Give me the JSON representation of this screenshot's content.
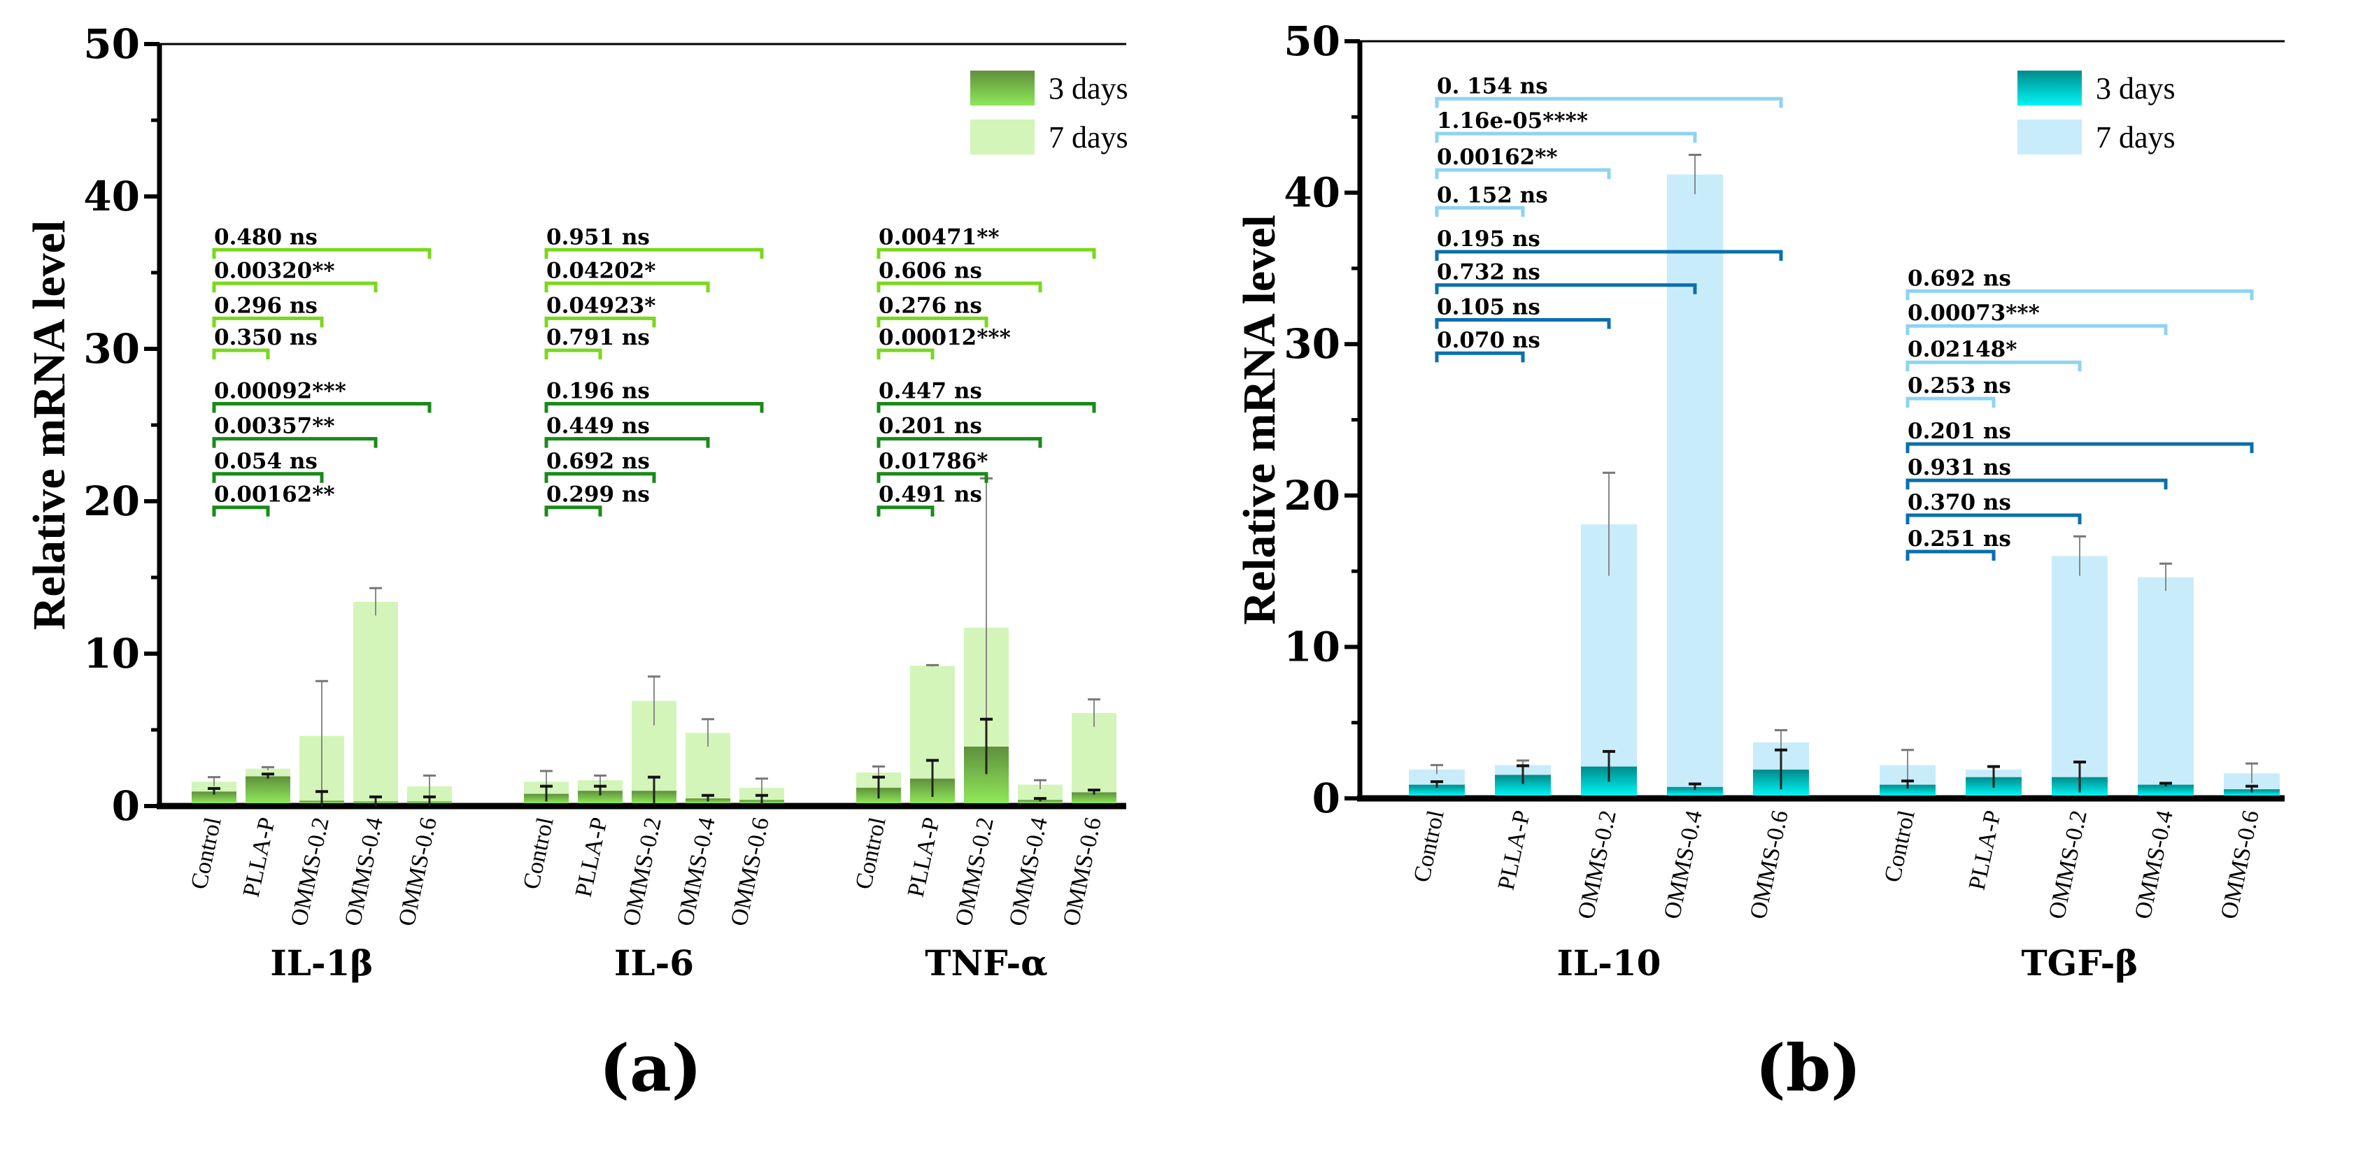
{
  "chart_data": [
    {
      "type": "bar",
      "panel_label": "(a)",
      "ylabel": "Relative mRNA level",
      "ylim": [
        0,
        50
      ],
      "yticks": [
        "0",
        "10",
        "20",
        "30",
        "40",
        "50"
      ],
      "legend": {
        "placement": "top-right",
        "entries": [
          "3 days",
          "7 days"
        ]
      },
      "colors": {
        "d3_top": "#5f8f3c",
        "d3_bottom": "#8fe85a",
        "d7": "#d3f5b9",
        "bracket_d3": "#1a8a1a",
        "bracket_d7": "#7ad81c"
      },
      "categories": [
        "Control",
        "PLLA-P",
        "OMMS-0.2",
        "OMMS-0.4",
        "OMMS-0.6"
      ],
      "groups": [
        {
          "name": "IL-1β",
          "d3": [
            0.95,
            1.95,
            0.35,
            0.3,
            0.3
          ],
          "d3_err": [
            0.2,
            0.15,
            0.6,
            0.3,
            0.3
          ],
          "d7": [
            1.6,
            2.45,
            4.6,
            13.4,
            1.3
          ],
          "d7_err": [
            0.3,
            0.1,
            3.6,
            0.9,
            0.7
          ],
          "annotations": [
            {
              "text": "0.00162**",
              "to": 1,
              "level": 19.6,
              "set": "d3"
            },
            {
              "text": "0.054 ns",
              "to": 2,
              "level": 21.8,
              "set": "d3"
            },
            {
              "text": "0.00357**",
              "to": 3,
              "level": 24.1,
              "set": "d3"
            },
            {
              "text": "0.00092***",
              "to": 4,
              "level": 26.4,
              "set": "d3"
            },
            {
              "text": "0.350 ns",
              "to": 1,
              "level": 29.9,
              "set": "d7"
            },
            {
              "text": "0.296 ns",
              "to": 2,
              "level": 32.0,
              "set": "d7"
            },
            {
              "text": "0.00320**",
              "to": 3,
              "level": 34.3,
              "set": "d7"
            },
            {
              "text": "0.480 ns",
              "to": 4,
              "level": 36.5,
              "set": "d7"
            }
          ]
        },
        {
          "name": "IL-6",
          "d3": [
            0.8,
            1.0,
            1.0,
            0.5,
            0.4
          ],
          "d3_err": [
            0.5,
            0.3,
            0.9,
            0.2,
            0.3
          ],
          "d7": [
            1.6,
            1.7,
            6.9,
            4.8,
            1.2
          ],
          "d7_err": [
            0.7,
            0.3,
            1.6,
            0.9,
            0.6
          ],
          "annotations": [
            {
              "text": "0.299 ns",
              "to": 1,
              "level": 19.6,
              "set": "d3"
            },
            {
              "text": "0.692 ns",
              "to": 2,
              "level": 21.8,
              "set": "d3"
            },
            {
              "text": "0.449 ns",
              "to": 3,
              "level": 24.1,
              "set": "d3"
            },
            {
              "text": "0.196 ns",
              "to": 4,
              "level": 26.4,
              "set": "d3"
            },
            {
              "text": "0.791 ns",
              "to": 1,
              "level": 29.9,
              "set": "d7"
            },
            {
              "text": "0.04923*",
              "to": 2,
              "level": 32.0,
              "set": "d7"
            },
            {
              "text": "0.04202*",
              "to": 3,
              "level": 34.3,
              "set": "d7"
            },
            {
              "text": "0.951 ns",
              "to": 4,
              "level": 36.5,
              "set": "d7"
            }
          ]
        },
        {
          "name": "TNF-α",
          "d3": [
            1.2,
            1.8,
            3.9,
            0.4,
            0.9
          ],
          "d3_err": [
            0.7,
            1.2,
            1.8,
            0.1,
            0.15
          ],
          "d7": [
            2.2,
            9.2,
            11.7,
            1.4,
            6.1
          ],
          "d7_err": [
            0.4,
            0.05,
            9.8,
            0.3,
            0.9
          ],
          "annotations": [
            {
              "text": "0.491 ns",
              "to": 1,
              "level": 19.6,
              "set": "d3"
            },
            {
              "text": "0.01786*",
              "to": 2,
              "level": 21.8,
              "set": "d3"
            },
            {
              "text": "0.201 ns",
              "to": 3,
              "level": 24.1,
              "set": "d3"
            },
            {
              "text": "0.447 ns",
              "to": 4,
              "level": 26.4,
              "set": "d3"
            },
            {
              "text": "0.00012***",
              "to": 1,
              "level": 29.9,
              "set": "d7"
            },
            {
              "text": "0.276 ns",
              "to": 2,
              "level": 32.0,
              "set": "d7"
            },
            {
              "text": "0.606 ns",
              "to": 3,
              "level": 34.3,
              "set": "d7"
            },
            {
              "text": "0.00471**",
              "to": 4,
              "level": 36.5,
              "set": "d7"
            }
          ]
        }
      ]
    },
    {
      "type": "bar",
      "panel_label": "(b)",
      "ylabel": "Relative mRNA level",
      "ylim": [
        0,
        50
      ],
      "yticks": [
        "0",
        "10",
        "20",
        "30",
        "40",
        "50"
      ],
      "legend": {
        "placement": "top-right",
        "entries": [
          "3 days",
          "7 days"
        ]
      },
      "colors": {
        "d3_top": "#008a8a",
        "d3_bottom": "#00f5f5",
        "d7": "#c9ecfb",
        "bracket_d3": "#0a6fae",
        "bracket_d7": "#8dd3f3"
      },
      "categories": [
        "Control",
        "PLLA-P",
        "OMMS-0.2",
        "OMMS-0.4",
        "OMMS-0.6"
      ],
      "groups": [
        {
          "name": "IL-10",
          "d3": [
            0.9,
            1.55,
            2.1,
            0.75,
            1.9
          ],
          "d3_err": [
            0.2,
            0.6,
            1.0,
            0.2,
            1.3
          ],
          "d7": [
            1.9,
            2.2,
            18.1,
            41.2,
            3.7
          ],
          "d7_err": [
            0.3,
            0.3,
            3.4,
            1.3,
            0.8
          ],
          "annotations": [
            {
              "text": "0.070 ns",
              "to": 1,
              "level": 29.4,
              "set": "d3"
            },
            {
              "text": "0.105 ns",
              "to": 2,
              "level": 31.6,
              "set": "d3"
            },
            {
              "text": "0.732 ns",
              "to": 3,
              "level": 33.9,
              "set": "d3"
            },
            {
              "text": "0.195 ns",
              "to": 4,
              "level": 36.1,
              "set": "d3"
            },
            {
              "text": "0. 152 ns",
              "to": 1,
              "level": 39.0,
              "set": "d7"
            },
            {
              "text": "0.00162**",
              "to": 2,
              "level": 41.5,
              "set": "d7"
            },
            {
              "text": "1.16e-05****",
              "to": 3,
              "level": 43.9,
              "set": "d7"
            },
            {
              "text": "0. 154 ns",
              "to": 4,
              "level": 46.2,
              "set": "d7"
            }
          ]
        },
        {
          "name": "TGF-β",
          "d3": [
            0.9,
            1.4,
            1.4,
            0.9,
            0.6
          ],
          "d3_err": [
            0.25,
            0.7,
            1.0,
            0.1,
            0.2
          ],
          "d7": [
            2.2,
            1.9,
            16.0,
            14.6,
            1.65
          ],
          "d7_err": [
            1.0,
            0.2,
            1.3,
            0.9,
            0.65
          ],
          "annotations": [
            {
              "text": "0.251 ns",
              "to": 1,
              "level": 16.3,
              "set": "d3"
            },
            {
              "text": "0.370 ns",
              "to": 2,
              "level": 18.7,
              "set": "d3"
            },
            {
              "text": "0.931 ns",
              "to": 3,
              "level": 21.0,
              "set": "d3"
            },
            {
              "text": "0.201 ns",
              "to": 4,
              "level": 23.4,
              "set": "d3"
            },
            {
              "text": "0.253 ns",
              "to": 1,
              "level": 26.4,
              "set": "d7"
            },
            {
              "text": "0.02148*",
              "to": 2,
              "level": 28.8,
              "set": "d7"
            },
            {
              "text": "0.00073***",
              "to": 3,
              "level": 31.2,
              "set": "d7"
            },
            {
              "text": "0.692 ns",
              "to": 4,
              "level": 33.5,
              "set": "d7"
            }
          ]
        }
      ]
    }
  ]
}
